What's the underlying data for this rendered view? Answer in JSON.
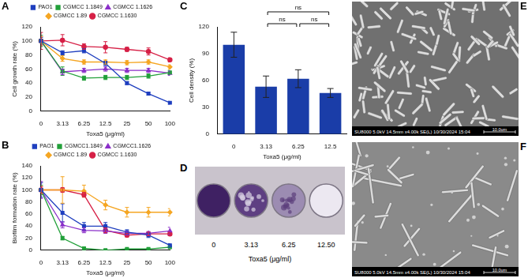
{
  "chart_data": [
    {
      "panel": "A",
      "type": "line",
      "x_label": "Toxa5 (μg/ml)",
      "y_label": "Cell growth rate (%)",
      "categories": [
        "0",
        "3.13",
        "6.25",
        "12.5",
        "25",
        "50",
        "100"
      ],
      "ylim": [
        0,
        120
      ],
      "yticks": [
        0,
        20,
        40,
        60,
        80,
        100,
        120
      ],
      "grid": false,
      "legend": "top",
      "series": [
        {
          "name": "PAO1",
          "color": "#1f3fbf",
          "marker": "square",
          "values": [
            100,
            83,
            86,
            68,
            40,
            25,
            12
          ],
          "errors": [
            5,
            3,
            3,
            3,
            2,
            2,
            2
          ]
        },
        {
          "name": "CGMCC 1.1849",
          "color": "#22a03a",
          "marker": "square",
          "values": [
            100,
            57,
            47,
            48,
            48,
            50,
            55
          ],
          "errors": [
            8,
            6,
            3,
            3,
            3,
            3,
            3
          ]
        },
        {
          "name": "CGMCC 1.1626",
          "color": "#8b2fc9",
          "marker": "triangle",
          "values": [
            100,
            56,
            58,
            60,
            58,
            58,
            54
          ],
          "errors": [
            6,
            4,
            3,
            3,
            3,
            3,
            3
          ]
        },
        {
          "name": "CGMCC 1.89",
          "color": "#f5a623",
          "marker": "diamond",
          "values": [
            100,
            75,
            70,
            70,
            69,
            70,
            63
          ],
          "errors": [
            6,
            4,
            3,
            3,
            3,
            3,
            3
          ]
        },
        {
          "name": "CGMCC 1.1630",
          "color": "#d62046",
          "marker": "circle",
          "values": [
            100,
            101,
            92,
            91,
            88,
            85,
            73
          ],
          "errors": [
            12,
            8,
            4,
            8,
            3,
            5,
            3
          ]
        }
      ]
    },
    {
      "panel": "B",
      "type": "line",
      "x_label": "Toxa5 (μg/ml)",
      "y_label": "Biofilm formation rate (%)",
      "categories": [
        "0",
        "3.13",
        "6.25",
        "12.5",
        "25",
        "50",
        "100"
      ],
      "ylim": [
        0,
        140
      ],
      "yticks": [
        0,
        20,
        40,
        60,
        80,
        100,
        120,
        140
      ],
      "grid": false,
      "legend": "top",
      "series": [
        {
          "name": "PAO1",
          "color": "#1f3fbf",
          "marker": "square",
          "values": [
            100,
            62,
            40,
            40,
            30,
            25,
            8
          ],
          "errors": [
            12,
            15,
            6,
            6,
            4,
            4,
            3
          ]
        },
        {
          "name": "CGMCC1.1849",
          "color": "#22a03a",
          "marker": "square",
          "values": [
            100,
            20,
            3,
            0,
            2,
            2,
            5
          ],
          "errors": [
            8,
            3,
            2,
            1,
            1,
            1,
            2
          ]
        },
        {
          "name": "CGMCC1.1626",
          "color": "#8b2fc9",
          "marker": "triangle",
          "values": [
            100,
            42,
            33,
            32,
            28,
            28,
            32
          ],
          "errors": [
            14,
            5,
            4,
            4,
            3,
            3,
            6
          ]
        },
        {
          "name": "CGMCC 1.89",
          "color": "#f5a623",
          "marker": "diamond",
          "values": [
            100,
            100,
            98,
            75,
            63,
            63,
            63
          ],
          "errors": [
            6,
            22,
            10,
            8,
            8,
            8,
            6
          ]
        },
        {
          "name": "CGMCC 1.1630",
          "color": "#d62046",
          "marker": "circle",
          "values": [
            100,
            100,
            92,
            33,
            25,
            27,
            27
          ],
          "errors": [
            5,
            4,
            4,
            4,
            3,
            3,
            3
          ]
        }
      ]
    },
    {
      "panel": "C",
      "type": "bar",
      "x_label": "Toxa5 (μg/ml)",
      "y_label": "Cell density (%)",
      "categories": [
        "0",
        "3.13",
        "6.25",
        "12.5"
      ],
      "values": [
        100,
        53,
        62,
        46
      ],
      "errors": [
        14,
        12,
        10,
        5
      ],
      "color": "#1a3da8",
      "ylim": [
        0,
        120
      ],
      "yticks": [
        0,
        30,
        60,
        90,
        120
      ],
      "grid": false,
      "annotations": [
        {
          "text": "ns",
          "between": [
            "3.13",
            "6.25"
          ]
        },
        {
          "text": "ns",
          "between": [
            "6.25",
            "12.5"
          ]
        },
        {
          "text": "ns",
          "between": [
            "3.13",
            "12.5"
          ]
        }
      ]
    }
  ],
  "plate": {
    "panel": "D",
    "well_labels": [
      "0",
      "3.13",
      "6.25",
      "12.50"
    ],
    "x_label": "Toxa5 (μg/ml)"
  },
  "micrographs": [
    {
      "panel": "E",
      "info": "SU8000 5.0kV 14.5mm x4.00k SE(L) 10/30/2024 15:04",
      "scale_bar": "10.0um"
    },
    {
      "panel": "F",
      "info": "SU8000 5.0kV 14.5mm x4.00k SE(L) 10/30/2024 15:04",
      "scale_bar": "10.0um"
    }
  ]
}
